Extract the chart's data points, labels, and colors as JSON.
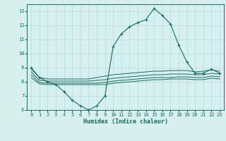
{
  "x": [
    0,
    1,
    2,
    3,
    4,
    5,
    6,
    7,
    8,
    9,
    10,
    11,
    12,
    13,
    14,
    15,
    16,
    17,
    18,
    19,
    20,
    21,
    22,
    23
  ],
  "line_main": [
    9,
    8.3,
    8.0,
    7.8,
    7.3,
    6.7,
    6.3,
    6.0,
    6.3,
    7.0,
    10.5,
    11.4,
    11.9,
    12.2,
    12.4,
    13.2,
    12.7,
    12.1,
    10.6,
    9.4,
    8.6,
    8.6,
    8.9,
    8.6
  ],
  "line_flat1": [
    8.9,
    8.3,
    8.2,
    8.2,
    8.2,
    8.2,
    8.2,
    8.2,
    8.3,
    8.4,
    8.5,
    8.55,
    8.6,
    8.65,
    8.7,
    8.75,
    8.75,
    8.8,
    8.8,
    8.8,
    8.7,
    8.75,
    8.85,
    8.75
  ],
  "line_flat2": [
    8.7,
    8.1,
    8.05,
    8.05,
    8.05,
    8.05,
    8.05,
    8.05,
    8.1,
    8.15,
    8.25,
    8.3,
    8.35,
    8.4,
    8.45,
    8.5,
    8.5,
    8.55,
    8.55,
    8.55,
    8.5,
    8.5,
    8.6,
    8.55
  ],
  "line_flat3": [
    8.5,
    7.95,
    7.9,
    7.9,
    7.9,
    7.9,
    7.9,
    7.9,
    7.9,
    7.95,
    8.05,
    8.1,
    8.15,
    8.2,
    8.25,
    8.3,
    8.3,
    8.3,
    8.35,
    8.35,
    8.3,
    8.3,
    8.4,
    8.35
  ],
  "line_flat4": [
    8.3,
    7.85,
    7.8,
    7.8,
    7.8,
    7.8,
    7.8,
    7.8,
    7.8,
    7.8,
    7.9,
    7.95,
    8.0,
    8.05,
    8.1,
    8.15,
    8.15,
    8.2,
    8.2,
    8.2,
    8.15,
    8.15,
    8.25,
    8.2
  ],
  "line_color": "#1a6b5a",
  "bg_color": "#d6f0ee",
  "grid_color": "#b8dbd8",
  "xlabel": "Humidex (Indice chaleur)",
  "ylim": [
    6,
    13.5
  ],
  "xlim": [
    -0.5,
    23.5
  ],
  "yticks": [
    6,
    7,
    8,
    9,
    10,
    11,
    12,
    13
  ],
  "xticks": [
    0,
    1,
    2,
    3,
    4,
    5,
    6,
    7,
    8,
    9,
    10,
    11,
    12,
    13,
    14,
    15,
    16,
    17,
    18,
    19,
    20,
    21,
    22,
    23
  ]
}
